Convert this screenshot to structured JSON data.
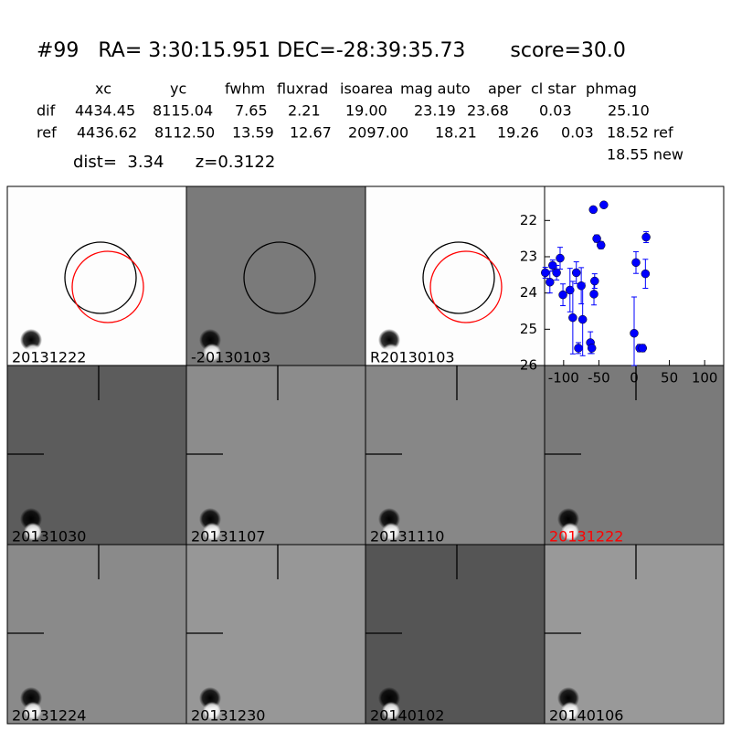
{
  "header": {
    "title": "#99   RA= 3:30:15.951 DEC=-28:39:35.73       score=30.0",
    "dist": "dist=  3.34      z=0.3122"
  },
  "table": {
    "columns": [
      "xc",
      "yc",
      "fwhm",
      "fluxrad",
      "isoarea",
      "mag auto",
      "aper",
      "cl star",
      "phmag"
    ],
    "rows": [
      {
        "cells": [
          "dif",
          "4434.45",
          "8115.04",
          "7.65",
          "2.21",
          "19.00",
          "23.19",
          "23.68",
          "0.03",
          "25.10"
        ]
      },
      {
        "cells": [
          "ref",
          "4436.62",
          "8112.50",
          "13.59",
          "12.67",
          "2097.00",
          "18.21",
          "19.26",
          "0.03",
          "18.52 ref"
        ]
      }
    ],
    "extra": "18.55 new"
  },
  "stamps": [
    {
      "label": "20131222"
    },
    {
      "label": "-20130103"
    },
    {
      "label": "R20130103"
    },
    {
      "label": "20131030"
    },
    {
      "label": "20131107"
    },
    {
      "label": "20131110"
    },
    {
      "label": "20131222"
    },
    {
      "label": "20131224"
    },
    {
      "label": "20131230"
    },
    {
      "label": "20140102"
    },
    {
      "label": "20140106"
    }
  ],
  "chart_data": {
    "type": "scatter",
    "color": "#0000ff",
    "x": [
      -126,
      -119.5,
      -115.6,
      -110,
      -105,
      -101,
      -91,
      -87,
      -82,
      -79,
      -75,
      -73,
      -62,
      -60,
      -58,
      -57,
      -56,
      -53,
      -47,
      -43,
      0,
      2.6,
      8,
      12,
      16,
      17
    ],
    "values": [
      23.44,
      23.7,
      23.24,
      23.44,
      23.04,
      24.05,
      23.92,
      24.68,
      23.44,
      25.52,
      23.8,
      24.73,
      25.37,
      25.52,
      21.7,
      24.03,
      23.67,
      22.5,
      22.68,
      21.57,
      25.11,
      23.16,
      25.52,
      25.52,
      23.47,
      22.46
    ],
    "errors": [
      0.15,
      0.3,
      0.15,
      0.2,
      0.3,
      0.3,
      0.6,
      1.0,
      0.3,
      0.15,
      0.5,
      1.0,
      0.3,
      0.15,
      0.05,
      0.3,
      0.2,
      0.1,
      0.1,
      0.03,
      1.0,
      0.3,
      0.1,
      0.1,
      0.4,
      0.15
    ],
    "xlim": [
      -127,
      127
    ],
    "ylim": [
      26,
      21.06
    ],
    "xticks": [
      -100,
      -50,
      0,
      50,
      100
    ],
    "yticks": [
      22,
      23,
      24,
      25,
      26
    ]
  }
}
